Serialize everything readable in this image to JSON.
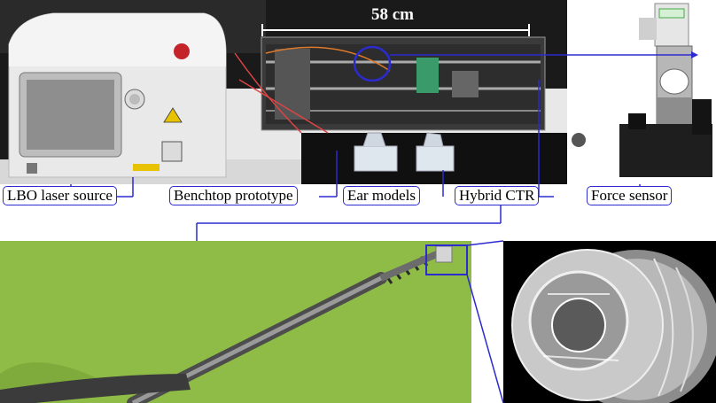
{
  "labels": {
    "laser": "LBO laser source",
    "benchtop": "Benchtop prototype",
    "ear": "Ear models",
    "ctr": "Hybrid CTR",
    "force": "Force sensor"
  },
  "dimension": "58 cm",
  "colors": {
    "callout": "#2b2bd0",
    "green_background": "#8fbc46",
    "black_background": "#000000"
  }
}
